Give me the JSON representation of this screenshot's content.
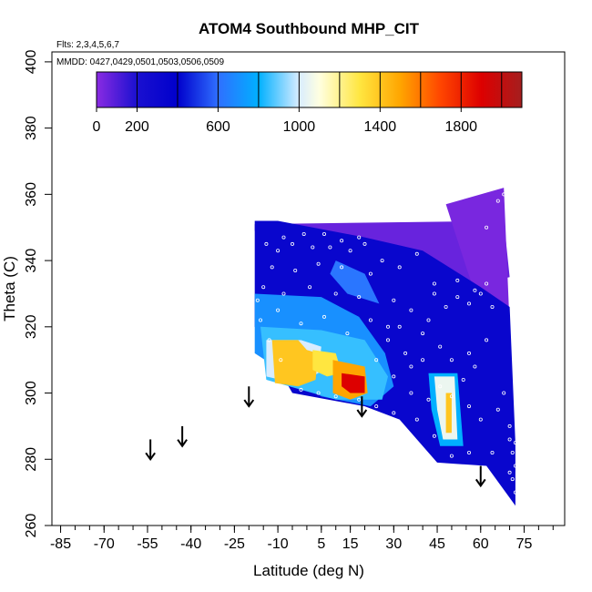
{
  "chart_data": {
    "type": "heatmap",
    "title": "ATOM4 Southbound MHP_CIT",
    "annotations": [
      "Flts: 2,3,4,5,6,7",
      "MMDD: 0427,0429,0501,0503,0506,0509"
    ],
    "xlabel": "Latitude (deg N)",
    "ylabel": "Theta (C)",
    "xlim": [
      -88,
      89
    ],
    "ylim": [
      260,
      403
    ],
    "x_ticks": [
      -85,
      -70,
      -55,
      -40,
      -25,
      -10,
      5,
      15,
      30,
      45,
      60,
      75
    ],
    "x_tick_labels": [
      "-85",
      "-70",
      "-55",
      "-40",
      "-25",
      "-10",
      "5",
      "15",
      "30",
      "45",
      "60",
      "75"
    ],
    "x_minor_step": 5,
    "y_ticks": [
      260,
      280,
      300,
      320,
      340,
      360,
      380,
      400
    ],
    "y_tick_labels": [
      "260",
      "280",
      "300",
      "320",
      "340",
      "360",
      "380",
      "400"
    ],
    "colorbar": {
      "min": 0,
      "max": 2100,
      "tick_values": [
        0,
        200,
        600,
        1000,
        1400,
        1800
      ],
      "tick_labels": [
        "0",
        "200",
        "600",
        "1000",
        "1400",
        "1800"
      ],
      "break_values": [
        0,
        200,
        400,
        600,
        800,
        1000,
        1200,
        1400,
        1600,
        1800,
        2000,
        2100
      ],
      "gradient_stops": [
        {
          "v": 0,
          "color": "#8a2be2"
        },
        {
          "v": 200,
          "color": "#1a10d0"
        },
        {
          "v": 400,
          "color": "#0000cc"
        },
        {
          "v": 600,
          "color": "#2f6fff"
        },
        {
          "v": 800,
          "color": "#00b0ff"
        },
        {
          "v": 1000,
          "color": "#d8ecff"
        },
        {
          "v": 1100,
          "color": "#ffffe0"
        },
        {
          "v": 1300,
          "color": "#ffe640"
        },
        {
          "v": 1500,
          "color": "#ffa500"
        },
        {
          "v": 1700,
          "color": "#ff4500"
        },
        {
          "v": 1900,
          "color": "#dd0000"
        },
        {
          "v": 2100,
          "color": "#a51e1e"
        }
      ]
    },
    "regions": [
      {
        "value": 60,
        "polygon": [
          [
            -18,
            351
          ],
          [
            68,
            352
          ],
          [
            70,
            335
          ],
          [
            50,
            331
          ],
          [
            35,
            336
          ],
          [
            20,
            340
          ],
          [
            -18,
            349
          ]
        ]
      },
      {
        "value": 30,
        "polygon": [
          [
            48,
            357
          ],
          [
            68,
            362
          ],
          [
            71,
            300
          ],
          [
            72,
            276
          ],
          [
            66,
            300
          ],
          [
            62,
            320
          ],
          [
            55,
            338
          ],
          [
            48,
            357
          ]
        ]
      },
      {
        "value": 330,
        "polygon": [
          [
            -18,
            352
          ],
          [
            -10,
            352
          ],
          [
            20,
            347
          ],
          [
            40,
            343
          ],
          [
            60,
            332
          ],
          [
            70,
            326
          ],
          [
            72,
            285
          ],
          [
            72,
            266
          ],
          [
            62,
            278
          ],
          [
            45,
            279
          ],
          [
            38,
            286
          ],
          [
            32,
            292
          ],
          [
            20,
            296
          ],
          [
            -5,
            300
          ],
          [
            -18,
            320
          ]
        ]
      },
      {
        "value": 700,
        "polygon": [
          [
            -18,
            330
          ],
          [
            5,
            329
          ],
          [
            18,
            323
          ],
          [
            27,
            312
          ],
          [
            30,
            302
          ],
          [
            22,
            296
          ],
          [
            5,
            299
          ],
          [
            -18,
            312
          ]
        ]
      },
      {
        "value": 620,
        "polygon": [
          [
            10,
            340
          ],
          [
            20,
            336
          ],
          [
            25,
            327
          ],
          [
            14,
            330
          ],
          [
            8,
            336
          ]
        ]
      },
      {
        "value": 850,
        "polygon": [
          [
            -16,
            320
          ],
          [
            5,
            319
          ],
          [
            20,
            316
          ],
          [
            28,
            305
          ],
          [
            26,
            298
          ],
          [
            10,
            298
          ],
          [
            -14,
            304
          ]
        ]
      },
      {
        "value": 1000,
        "polygon": [
          [
            -14,
            316
          ],
          [
            -2,
            316
          ],
          [
            5,
            314
          ],
          [
            4,
            306
          ],
          [
            -4,
            303
          ],
          [
            -14,
            305
          ]
        ]
      },
      {
        "value": 800,
        "polygon": [
          [
            42,
            306
          ],
          [
            52,
            306
          ],
          [
            54,
            284
          ],
          [
            46,
            284
          ],
          [
            43,
            295
          ]
        ]
      },
      {
        "value": 1050,
        "polygon": [
          [
            44,
            305
          ],
          [
            51,
            305
          ],
          [
            52,
            286
          ],
          [
            47,
            286
          ],
          [
            45,
            295
          ]
        ]
      },
      {
        "value": 1400,
        "polygon": [
          [
            -12,
            316
          ],
          [
            -3,
            316
          ],
          [
            0,
            313
          ],
          [
            4,
            312
          ],
          [
            3,
            304
          ],
          [
            -3,
            302
          ],
          [
            -11,
            303
          ]
        ]
      },
      {
        "value": 1300,
        "polygon": [
          [
            2,
            313
          ],
          [
            10,
            312
          ],
          [
            12,
            306
          ],
          [
            7,
            305
          ],
          [
            2,
            307
          ]
        ]
      },
      {
        "value": 1500,
        "polygon": [
          [
            9,
            310
          ],
          [
            20,
            308
          ],
          [
            21,
            300
          ],
          [
            15,
            298
          ],
          [
            9,
            300
          ]
        ]
      },
      {
        "value": 1900,
        "polygon": [
          [
            12,
            306
          ],
          [
            20,
            305
          ],
          [
            20,
            300
          ],
          [
            15,
            300
          ],
          [
            12,
            302
          ]
        ]
      },
      {
        "value": 1400,
        "polygon": [
          [
            48,
            300
          ],
          [
            50,
            300
          ],
          [
            50,
            288
          ],
          [
            48,
            288
          ]
        ]
      }
    ],
    "points": [
      [
        -14,
        345
      ],
      [
        -10,
        343
      ],
      [
        -5,
        345
      ],
      [
        2,
        344
      ],
      [
        8,
        344
      ],
      [
        15,
        343
      ],
      [
        20,
        345
      ],
      [
        -12,
        338
      ],
      [
        -4,
        337
      ],
      [
        4,
        339
      ],
      [
        12,
        338
      ],
      [
        22,
        336
      ],
      [
        -15,
        332
      ],
      [
        -8,
        330
      ],
      [
        1,
        332
      ],
      [
        10,
        330
      ],
      [
        18,
        329
      ],
      [
        -16,
        322
      ],
      [
        -10,
        325
      ],
      [
        -2,
        321
      ],
      [
        6,
        323
      ],
      [
        14,
        318
      ],
      [
        22,
        322
      ],
      [
        28,
        320
      ],
      [
        30,
        328
      ],
      [
        36,
        325
      ],
      [
        40,
        318
      ],
      [
        44,
        330
      ],
      [
        48,
        326
      ],
      [
        52,
        329
      ],
      [
        56,
        327
      ],
      [
        58,
        331
      ],
      [
        62,
        333
      ],
      [
        34,
        312
      ],
      [
        40,
        310
      ],
      [
        46,
        314
      ],
      [
        50,
        310
      ],
      [
        56,
        312
      ],
      [
        30,
        305
      ],
      [
        36,
        300
      ],
      [
        42,
        298
      ],
      [
        50,
        299
      ],
      [
        56,
        296
      ],
      [
        60,
        292
      ],
      [
        66,
        295
      ],
      [
        68,
        300
      ],
      [
        70,
        290
      ],
      [
        71,
        282
      ],
      [
        72,
        278
      ],
      [
        72,
        270
      ],
      [
        70,
        286
      ],
      [
        64,
        282
      ],
      [
        56,
        282
      ],
      [
        50,
        281
      ],
      [
        44,
        287
      ],
      [
        38,
        292
      ],
      [
        30,
        294
      ],
      [
        24,
        296
      ],
      [
        18,
        298
      ],
      [
        10,
        299
      ],
      [
        4,
        300
      ],
      [
        -2,
        301
      ],
      [
        26,
        340
      ],
      [
        32,
        338
      ],
      [
        38,
        342
      ],
      [
        44,
        333
      ],
      [
        52,
        334
      ],
      [
        60,
        330
      ],
      [
        64,
        326
      ],
      [
        66,
        358
      ],
      [
        68,
        360
      ],
      [
        62,
        350
      ],
      [
        -8,
        347
      ],
      [
        -1,
        348
      ],
      [
        6,
        348
      ],
      [
        12,
        346
      ],
      [
        18,
        347
      ],
      [
        -17,
        328
      ],
      [
        -13,
        316
      ],
      [
        -9,
        310
      ],
      [
        24,
        310
      ],
      [
        28,
        316
      ],
      [
        32,
        320
      ],
      [
        36,
        308
      ],
      [
        42,
        322
      ],
      [
        46,
        302
      ],
      [
        54,
        304
      ],
      [
        58,
        308
      ],
      [
        62,
        316
      ],
      [
        70,
        276
      ],
      [
        71,
        274
      ],
      [
        72,
        285
      ]
    ],
    "arrows": [
      {
        "x": -54,
        "y_top": 286,
        "y_bottom": 280
      },
      {
        "x": -43,
        "y_top": 290,
        "y_bottom": 284
      },
      {
        "x": -20,
        "y_top": 302,
        "y_bottom": 296
      },
      {
        "x": 19,
        "y_top": 299,
        "y_bottom": 293
      },
      {
        "x": 60,
        "y_top": 278,
        "y_bottom": 272
      }
    ]
  }
}
